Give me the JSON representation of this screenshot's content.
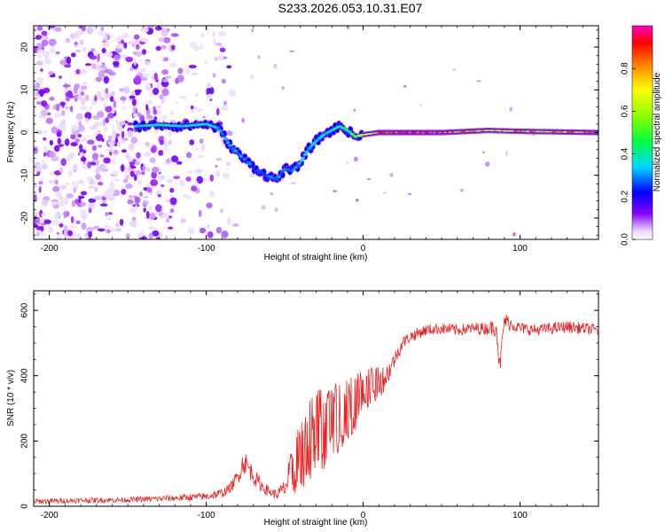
{
  "title": "S233.2026.053.10.31.E07",
  "chart_data": [
    {
      "type": "heatmap",
      "xlabel": "Height of straight line (km)",
      "ylabel": "Frequency (Hz)",
      "xlim": [
        -210,
        150
      ],
      "ylim": [
        -25,
        25
      ],
      "x_ticks": [
        -200,
        -100,
        0,
        100
      ],
      "x_tick_labels": [
        "-200",
        "-100",
        "0",
        "100"
      ],
      "y_ticks": [
        -20,
        -10,
        0,
        10,
        20
      ],
      "y_tick_labels": [
        "-20",
        "-10",
        "0",
        "10",
        "20"
      ],
      "colorbar": {
        "label": "Normalized spectral amplitude",
        "range": [
          0,
          1
        ],
        "ticks": [
          0.0,
          0.2,
          0.4,
          0.6,
          0.8
        ],
        "tick_labels": [
          "0.0",
          "0.2",
          "0.4",
          "0.6",
          "0.8"
        ],
        "colormap": [
          "#ffffff",
          "#7a00ff",
          "#0000ff",
          "#00e0ff",
          "#00ff00",
          "#ffff00",
          "#ff8000",
          "#ff0000",
          "#ff00c0"
        ]
      },
      "ridge": {
        "x": [
          -145,
          -130,
          -115,
          -100,
          -92,
          -85,
          -78,
          -70,
          -62,
          -55,
          -50,
          -45,
          -40,
          -35,
          -30,
          -25,
          -20,
          -15,
          -10,
          -5,
          0,
          10,
          50,
          80,
          100,
          150
        ],
        "y": [
          1.5,
          1.8,
          1.5,
          2.0,
          1.0,
          -3.0,
          -5.5,
          -8.0,
          -10.0,
          -11.0,
          -8.5,
          -9.0,
          -7.0,
          -4.0,
          -2.0,
          -0.5,
          0.5,
          1.5,
          0.5,
          -1.0,
          -0.5,
          0.0,
          0.0,
          0.5,
          0.3,
          0.0
        ],
        "amplitude": [
          0.35,
          0.4,
          0.35,
          0.4,
          0.3,
          0.3,
          0.3,
          0.25,
          0.28,
          0.3,
          0.3,
          0.3,
          0.3,
          0.35,
          0.35,
          0.35,
          0.38,
          0.4,
          0.4,
          0.5,
          0.6,
          0.85,
          0.9,
          0.7,
          0.8,
          0.8
        ]
      }
    },
    {
      "type": "line",
      "xlabel": "Height of straight line (km)",
      "ylabel": "SNR (10 * v/v)",
      "xlim": [
        -210,
        150
      ],
      "ylim": [
        0,
        660
      ],
      "x_ticks": [
        -200,
        -100,
        0,
        100
      ],
      "x_tick_labels": [
        "-200",
        "-100",
        "0",
        "100"
      ],
      "y_ticks": [
        0,
        200,
        400,
        600
      ],
      "y_tick_labels": [
        "0",
        "200",
        "400",
        "600"
      ],
      "color": "#ee2222",
      "series": [
        {
          "name": "SNR",
          "x": [
            -210,
            -180,
            -150,
            -120,
            -100,
            -90,
            -85,
            -80,
            -76,
            -72,
            -68,
            -64,
            -60,
            -55,
            -50,
            -45,
            -40,
            -35,
            -30,
            -25,
            -20,
            -15,
            -10,
            -5,
            0,
            5,
            10,
            15,
            20,
            25,
            30,
            40,
            50,
            60,
            70,
            80,
            85,
            87,
            90,
            100,
            110,
            120,
            130,
            140,
            150
          ],
          "y": [
            15,
            18,
            20,
            25,
            30,
            40,
            55,
            90,
            140,
            110,
            80,
            60,
            45,
            35,
            55,
            110,
            160,
            200,
            240,
            230,
            250,
            280,
            300,
            320,
            360,
            370,
            380,
            400,
            450,
            500,
            520,
            540,
            545,
            540,
            545,
            545,
            550,
            420,
            570,
            545,
            540,
            545,
            550,
            545,
            540
          ],
          "noise": [
            8,
            8,
            8,
            10,
            12,
            15,
            15,
            25,
            40,
            30,
            25,
            20,
            15,
            15,
            30,
            80,
            110,
            130,
            140,
            130,
            120,
            110,
            100,
            90,
            70,
            60,
            50,
            40,
            25,
            20,
            18,
            18,
            18,
            18,
            18,
            20,
            30,
            30,
            25,
            18,
            18,
            18,
            18,
            18,
            18
          ]
        }
      ]
    }
  ]
}
